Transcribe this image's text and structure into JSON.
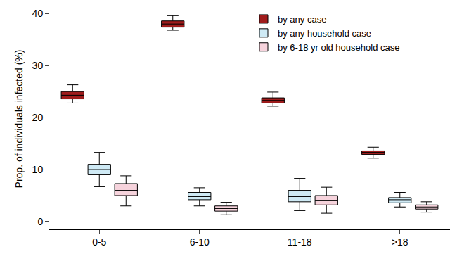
{
  "chart_data": {
    "type": "box",
    "y_label": "Prop. of individuals infected (%)",
    "categories": [
      "0-5",
      "6-10",
      "11-18",
      ">18"
    ],
    "series": [
      {
        "name": "by any case",
        "color": "#a01c1c",
        "lower": [
          22.8,
          36.8,
          22.2,
          12.2
        ],
        "q1": [
          23.6,
          37.4,
          22.8,
          12.9
        ],
        "median": [
          24.3,
          38.0,
          23.3,
          13.3
        ],
        "q3": [
          25.0,
          38.6,
          23.8,
          13.6
        ],
        "upper": [
          26.3,
          39.6,
          24.9,
          14.3
        ]
      },
      {
        "name": "by any household case",
        "color": "#cfeaf5",
        "lower": [
          6.7,
          3.0,
          2.1,
          2.8
        ],
        "q1": [
          9.0,
          4.2,
          3.8,
          3.6
        ],
        "median": [
          10.0,
          4.8,
          4.8,
          4.2
        ],
        "q3": [
          11.0,
          5.6,
          6.0,
          4.6
        ],
        "upper": [
          13.3,
          6.5,
          8.3,
          5.6
        ]
      },
      {
        "name": "by 6-18 yr old household case",
        "color": "#f6d3dc",
        "lower": [
          3.0,
          1.3,
          1.6,
          1.8
        ],
        "q1": [
          5.0,
          2.0,
          3.2,
          2.4
        ],
        "median": [
          6.0,
          2.5,
          4.1,
          2.8
        ],
        "q3": [
          7.3,
          3.0,
          5.0,
          3.2
        ],
        "upper": [
          8.8,
          3.7,
          6.6,
          3.8
        ]
      }
    ],
    "ylim": [
      -1.5,
      41
    ],
    "yticks": [
      0,
      10,
      20,
      30,
      40
    ],
    "grid": false,
    "legend": "top"
  }
}
